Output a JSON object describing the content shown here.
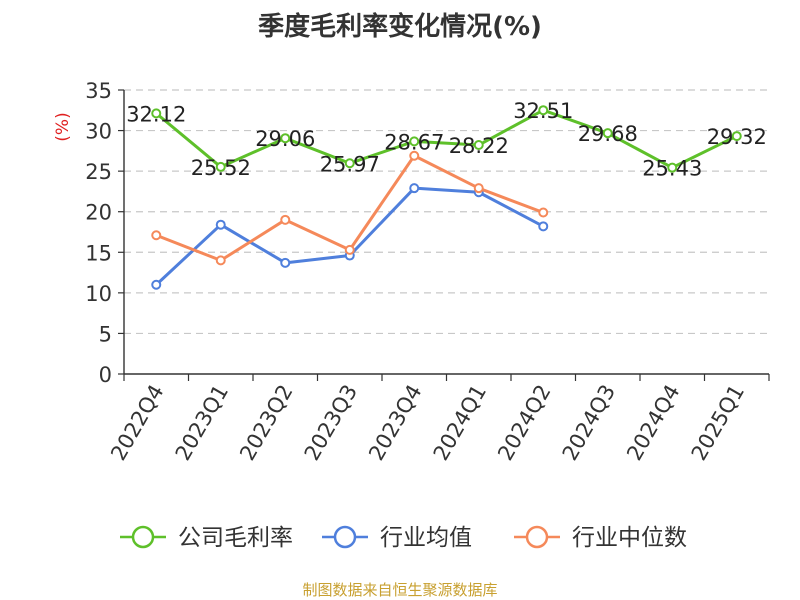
{
  "chart_data": {
    "type": "line",
    "title": "季度毛利率变化情况(%)",
    "ylabel": "(%)",
    "xlabel": "",
    "ylim": [
      0,
      35
    ],
    "yticks": [
      0,
      5,
      10,
      15,
      20,
      25,
      30,
      35
    ],
    "categories": [
      "2022Q4",
      "2023Q1",
      "2023Q2",
      "2023Q3",
      "2023Q4",
      "2024Q1",
      "2024Q2",
      "2024Q3",
      "2024Q4",
      "2025Q1"
    ],
    "grid": true,
    "legend_position": "bottom",
    "series": [
      {
        "name": "公司毛利率",
        "color": "#5ec02a",
        "values": [
          32.12,
          25.52,
          29.06,
          25.97,
          28.67,
          28.22,
          32.51,
          29.68,
          25.43,
          29.32
        ],
        "labels": [
          "32.12",
          "25.52",
          "29.06",
          "25.97",
          "28.67",
          "28.22",
          "32.51",
          "29.68",
          "25.43",
          "29.32"
        ]
      },
      {
        "name": "行业均值",
        "color": "#4f7fdc",
        "values": [
          11.0,
          18.4,
          13.7,
          14.6,
          22.9,
          22.4,
          18.2,
          null,
          null,
          null
        ]
      },
      {
        "name": "行业中位数",
        "color": "#f5895a",
        "values": [
          17.1,
          14.0,
          19.0,
          15.3,
          26.9,
          22.9,
          19.9,
          null,
          null,
          null
        ]
      }
    ]
  },
  "source_text": "制图数据来自恒生聚源数据库"
}
